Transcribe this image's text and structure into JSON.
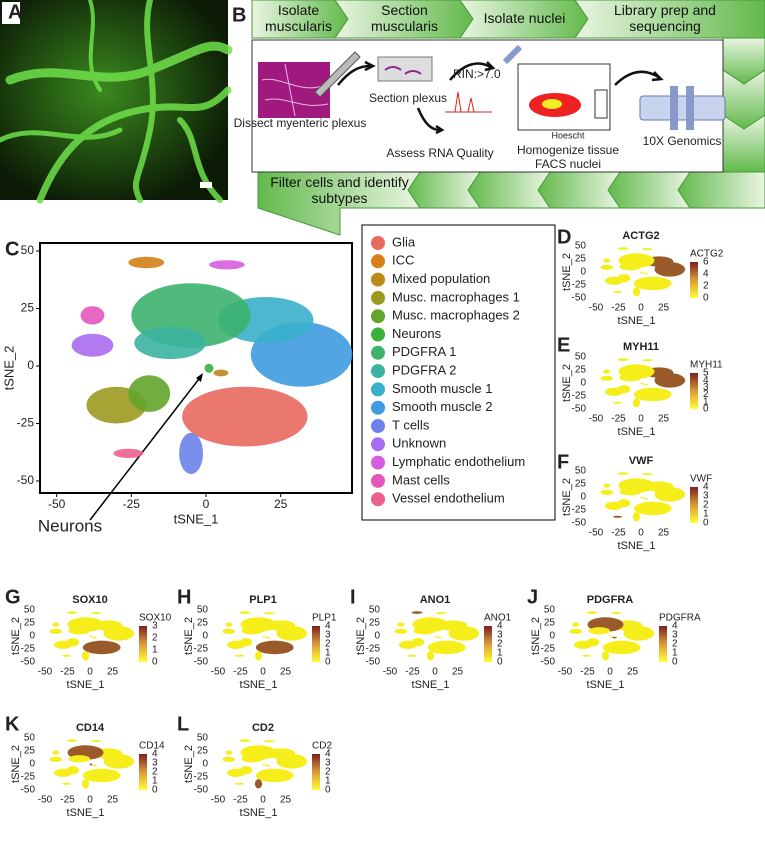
{
  "panels": [
    "A",
    "B",
    "C",
    "D",
    "E",
    "F",
    "G",
    "H",
    "I",
    "J",
    "K",
    "L"
  ],
  "workflow": {
    "steps": [
      "Isolate muscularis",
      "Section muscularis",
      "Isolate nuclei",
      "Library prep and sequencing",
      "Filter cells and identify subtypes"
    ],
    "labels": [
      "Dissect myenteric plexus",
      "Section plexus",
      "RIN:>7.0",
      "Assess RNA Quality",
      "Hoescht",
      "Homogenize tissue",
      "FACS nuclei",
      "10X Genomics"
    ]
  },
  "tsne": {
    "xlabel": "tSNE_1",
    "ylabel": "tSNE_2",
    "xticks": [
      -50,
      -25,
      0,
      25
    ],
    "yticks": [
      -50,
      -25,
      0,
      25,
      50
    ],
    "annotation": "Neurons",
    "legend": [
      {
        "name": "Glia",
        "color": "#e8695e"
      },
      {
        "name": "ICC",
        "color": "#d47f1a"
      },
      {
        "name": "Mixed population",
        "color": "#b98a1c"
      },
      {
        "name": "Musc. macrophages 1",
        "color": "#9c9a1e"
      },
      {
        "name": "Musc. macrophages 2",
        "color": "#63a52a"
      },
      {
        "name": "Neurons",
        "color": "#3daf3d"
      },
      {
        "name": "PDGFRA 1",
        "color": "#3db36e"
      },
      {
        "name": "PDGFRA 2",
        "color": "#3bb3a0"
      },
      {
        "name": "Smooth muscle 1",
        "color": "#3aafcb"
      },
      {
        "name": "Smooth muscle 2",
        "color": "#3e9be0"
      },
      {
        "name": "T cells",
        "color": "#6c82ea"
      },
      {
        "name": "Unknown",
        "color": "#a96cf0"
      },
      {
        "name": "Lymphatic endothelium",
        "color": "#d65de0"
      },
      {
        "name": "Mast cells",
        "color": "#e357be"
      },
      {
        "name": "Vessel endothelium",
        "color": "#ec5f8f"
      }
    ]
  },
  "feature_plots": [
    {
      "gene": "ACTG2",
      "scale_title": "ACTG2",
      "scale_ticks": [
        0,
        2,
        4,
        6
      ],
      "xlabel": "tSNE_1",
      "ylabel": "tSNE_2",
      "xticks": [
        -50,
        -25,
        0,
        25
      ],
      "yticks": [
        -50,
        -25,
        0,
        25,
        50
      ]
    },
    {
      "gene": "MYH11",
      "scale_title": "MYH11",
      "scale_ticks": [
        0,
        1,
        2,
        3,
        4,
        5
      ],
      "xlabel": "tSNE_1",
      "ylabel": "tSNE_2",
      "xticks": [
        -50,
        -25,
        0,
        25
      ],
      "yticks": [
        -50,
        -25,
        0,
        25,
        50
      ]
    },
    {
      "gene": "VWF",
      "scale_title": "VWF",
      "scale_ticks": [
        0,
        1,
        2,
        3,
        4
      ],
      "xlabel": "tSNE_1",
      "ylabel": "tSNE_2",
      "xticks": [
        -50,
        -25,
        0,
        25
      ],
      "yticks": [
        -50,
        -25,
        0,
        25,
        50
      ]
    },
    {
      "gene": "SOX10",
      "scale_title": "SOX10",
      "scale_ticks": [
        0,
        1,
        2,
        3
      ],
      "xlabel": "tSNE_1",
      "ylabel": "tSNE_2",
      "xticks": [
        -50,
        -25,
        0,
        25
      ],
      "yticks": [
        -50,
        -25,
        0,
        25,
        50
      ]
    },
    {
      "gene": "PLP1",
      "scale_title": "PLP1",
      "scale_ticks": [
        0,
        1,
        2,
        3,
        4
      ],
      "xlabel": "tSNE_1",
      "ylabel": "tSNE_2",
      "xticks": [
        -50,
        -25,
        0,
        25
      ],
      "yticks": [
        -50,
        -25,
        0,
        25,
        50
      ]
    },
    {
      "gene": "ANO1",
      "scale_title": "ANO1",
      "scale_ticks": [
        0,
        1,
        2,
        3,
        4
      ],
      "xlabel": "tSNE_1",
      "ylabel": "tSNE_2",
      "xticks": [
        -50,
        -25,
        0,
        25
      ],
      "yticks": [
        -50,
        -25,
        0,
        25,
        50
      ]
    },
    {
      "gene": "PDGFRA",
      "scale_title": "PDGFRA",
      "scale_ticks": [
        0,
        1,
        2,
        3,
        4
      ],
      "xlabel": "tSNE_1",
      "ylabel": "tSNE_2",
      "xticks": [
        -50,
        -25,
        0,
        25
      ],
      "yticks": [
        -50,
        -25,
        0,
        25,
        50
      ]
    },
    {
      "gene": "CD14",
      "scale_title": "CD14",
      "scale_ticks": [
        0,
        1,
        2,
        3,
        4
      ],
      "xlabel": "tSNE_1",
      "ylabel": "tSNE_2",
      "xticks": [
        -50,
        -25,
        0,
        25
      ],
      "yticks": [
        -50,
        -25,
        0,
        25,
        50
      ]
    },
    {
      "gene": "CD2",
      "scale_title": "CD2",
      "scale_ticks": [
        0,
        1,
        2,
        3,
        4
      ],
      "xlabel": "tSNE_1",
      "ylabel": "tSNE_2",
      "xticks": [
        -50,
        -25,
        0,
        25
      ],
      "yticks": [
        -50,
        -25,
        0,
        25,
        50
      ]
    }
  ]
}
